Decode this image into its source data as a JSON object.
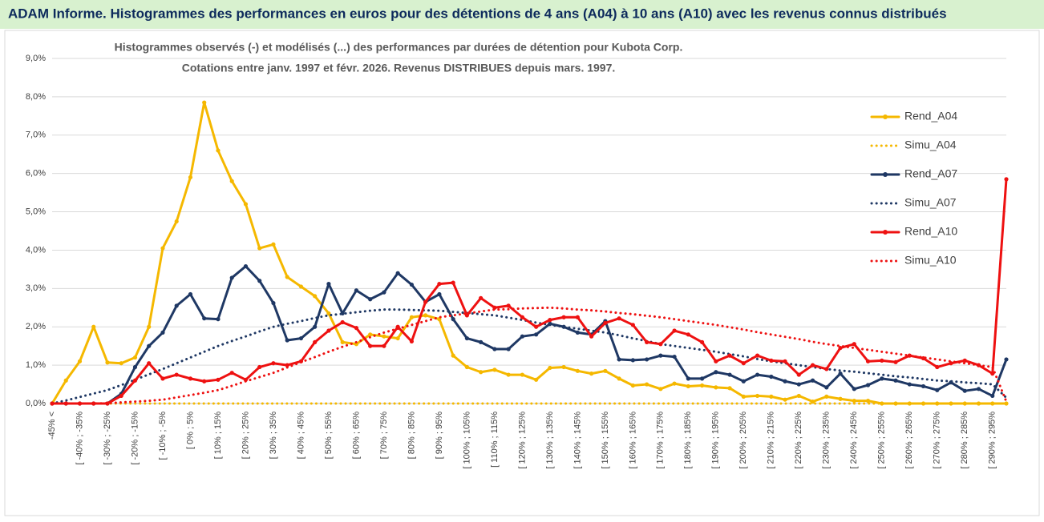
{
  "header": {
    "title": "ADAM Informe. Histogrammes des performances en euros pour des détentions de 4 ans (A04) à 10 ans (A10) avec les revenus connus distribués"
  },
  "chart_data": {
    "type": "line",
    "title": "Histogrammes observés (-) et modélisés (...) des performances par durées de détention pour Kubota Corp.",
    "subtitle": "Cotations entre janv. 1997 et févr.  2026. Revenus DISTRIBUES depuis mars. 1997.",
    "categories": [
      "-45% <",
      null,
      "[ -40% ; -35%",
      null,
      "[ -30% ; -25%",
      null,
      "[ -20% ; -15%",
      null,
      "[ -10% ; -5%",
      null,
      "[ 0% ; 5%",
      null,
      "[ 10% ; 15%",
      null,
      "[ 20% ; 25%",
      null,
      "[ 30% ; 35%",
      null,
      "[ 40% ; 45%",
      null,
      "[ 50% ; 55%",
      null,
      "[ 60% ; 65%",
      null,
      "[ 70% ; 75%",
      null,
      "[ 80% ; 85%",
      null,
      "[ 90% ; 95%",
      null,
      "[ 100% ; 105%",
      null,
      "[ 110% ; 115%",
      null,
      "[ 120% ; 125%",
      null,
      "[ 130% ; 135%",
      null,
      "[ 140% ; 145%",
      null,
      "[ 150% ; 155%",
      null,
      "[ 160% ; 165%",
      null,
      "[ 170% ; 175%",
      null,
      "[ 180% ; 185%",
      null,
      "[ 190% ; 195%",
      null,
      "[ 200% ; 205%",
      null,
      "[ 210% ; 215%",
      null,
      "[ 220% ; 225%",
      null,
      "[ 230% ; 235%",
      null,
      "[ 240% ; 245%",
      null,
      "[ 250% ; 255%",
      null,
      "[ 260% ; 265%",
      null,
      "[ 270% ; 275%",
      null,
      "[ 280% ; 285%",
      null,
      "[ 290% ; 295%",
      null
    ],
    "ylim": [
      0,
      9
    ],
    "yticks": [
      {
        "value": 0,
        "label": "0,0%"
      },
      {
        "value": 1,
        "label": "1,0%"
      },
      {
        "value": 2,
        "label": "2,0%"
      },
      {
        "value": 3,
        "label": "3,0%"
      },
      {
        "value": 4,
        "label": "4,0%"
      },
      {
        "value": 5,
        "label": "5,0%"
      },
      {
        "value": 6,
        "label": "6,0%"
      },
      {
        "value": 7,
        "label": "7,0%"
      },
      {
        "value": 8,
        "label": "8,0%"
      },
      {
        "value": 9,
        "label": "9,0%"
      }
    ],
    "grid": true,
    "legend": "right",
    "series": [
      {
        "name": "Rend_A04",
        "color": "#f5b800",
        "line_style": "solid",
        "markers": true,
        "values": [
          0,
          0.6,
          1.1,
          2.0,
          1.07,
          1.05,
          1.2,
          2.0,
          4.05,
          4.75,
          5.9,
          7.85,
          6.6,
          5.8,
          5.2,
          4.05,
          4.15,
          3.3,
          3.05,
          2.8,
          2.35,
          1.6,
          1.55,
          1.8,
          1.75,
          1.7,
          2.25,
          2.3,
          2.2,
          1.25,
          0.95,
          0.82,
          0.88,
          0.75,
          0.75,
          0.62,
          0.93,
          0.95,
          0.85,
          0.78,
          0.85,
          0.65,
          0.47,
          0.5,
          0.38,
          0.52,
          0.45,
          0.47,
          0.42,
          0.4,
          0.18,
          0.2,
          0.18,
          0.1,
          0.2,
          0.05,
          0.18,
          0.12,
          0.07,
          0.07,
          0,
          0,
          0,
          0,
          0,
          0,
          0,
          0,
          0,
          0
        ]
      },
      {
        "name": "Simu_A04",
        "color": "#f5b800",
        "line_style": "dotted",
        "markers": false,
        "values": [
          0,
          0,
          0,
          0,
          0,
          0,
          0,
          0,
          0,
          0,
          0,
          0,
          0,
          0,
          0,
          0,
          0,
          0,
          0,
          0,
          0,
          0,
          0,
          0,
          0,
          0,
          0,
          0,
          0,
          0,
          0,
          0,
          0,
          0,
          0,
          0,
          0,
          0,
          0,
          0,
          0,
          0,
          0,
          0,
          0,
          0,
          0,
          0,
          0,
          0,
          0,
          0,
          0,
          0,
          0,
          0,
          0,
          0,
          0,
          0,
          0,
          0,
          0,
          0,
          0,
          0,
          0,
          0,
          0,
          0
        ]
      },
      {
        "name": "Rend_A07",
        "color": "#1f3864",
        "line_style": "solid",
        "markers": true,
        "values": [
          0,
          0,
          0,
          0,
          0,
          0.25,
          0.95,
          1.5,
          1.85,
          2.55,
          2.85,
          2.22,
          2.2,
          3.28,
          3.58,
          3.2,
          2.62,
          1.65,
          1.7,
          2.0,
          3.12,
          2.35,
          2.95,
          2.72,
          2.9,
          3.4,
          3.1,
          2.65,
          2.85,
          2.2,
          1.7,
          1.6,
          1.42,
          1.42,
          1.75,
          1.8,
          2.08,
          2.0,
          1.85,
          1.8,
          2.15,
          1.15,
          1.13,
          1.15,
          1.25,
          1.22,
          0.65,
          0.65,
          0.82,
          0.75,
          0.58,
          0.75,
          0.7,
          0.58,
          0.5,
          0.6,
          0.42,
          0.78,
          0.38,
          0.48,
          0.65,
          0.6,
          0.5,
          0.45,
          0.35,
          0.55,
          0.33,
          0.38,
          0.2,
          1.15
        ]
      },
      {
        "name": "Simu_A07",
        "color": "#1f3864",
        "line_style": "dotted",
        "markers": false,
        "values": [
          0,
          0.08,
          0.17,
          0.26,
          0.35,
          0.48,
          0.62,
          0.76,
          0.9,
          1.05,
          1.2,
          1.35,
          1.5,
          1.63,
          1.75,
          1.88,
          2.0,
          2.08,
          2.15,
          2.23,
          2.3,
          2.34,
          2.38,
          2.42,
          2.45,
          2.45,
          2.44,
          2.43,
          2.42,
          2.39,
          2.36,
          2.33,
          2.3,
          2.24,
          2.18,
          2.11,
          2.05,
          2.0,
          1.95,
          1.9,
          1.85,
          1.78,
          1.7,
          1.63,
          1.55,
          1.5,
          1.45,
          1.4,
          1.35,
          1.29,
          1.23,
          1.16,
          1.1,
          1.05,
          1.0,
          0.95,
          0.9,
          0.86,
          0.83,
          0.79,
          0.75,
          0.71,
          0.68,
          0.64,
          0.6,
          0.58,
          0.55,
          0.53,
          0.5,
          0.15
        ]
      },
      {
        "name": "Rend_A10",
        "color": "#ee1111",
        "line_style": "solid",
        "markers": true,
        "values": [
          0,
          0,
          0,
          0,
          0,
          0.2,
          0.6,
          1.05,
          0.65,
          0.75,
          0.65,
          0.58,
          0.62,
          0.8,
          0.62,
          0.95,
          1.05,
          1.0,
          1.1,
          1.6,
          1.9,
          2.12,
          1.97,
          1.5,
          1.5,
          2.0,
          1.62,
          2.65,
          3.12,
          3.15,
          2.3,
          2.75,
          2.5,
          2.55,
          2.25,
          2.0,
          2.18,
          2.25,
          2.25,
          1.75,
          2.1,
          2.22,
          2.05,
          1.6,
          1.55,
          1.9,
          1.8,
          1.6,
          1.1,
          1.25,
          1.05,
          1.25,
          1.12,
          1.1,
          0.75,
          1.0,
          0.9,
          1.45,
          1.55,
          1.1,
          1.12,
          1.08,
          1.25,
          1.18,
          0.95,
          1.05,
          1.12,
          1.0,
          0.78,
          5.85
        ]
      },
      {
        "name": "Simu_A10",
        "color": "#ee1111",
        "line_style": "dotted",
        "markers": false,
        "values": [
          0,
          0,
          0,
          0,
          0.01,
          0.03,
          0.05,
          0.07,
          0.1,
          0.16,
          0.22,
          0.28,
          0.35,
          0.46,
          0.58,
          0.69,
          0.8,
          0.94,
          1.08,
          1.21,
          1.35,
          1.48,
          1.6,
          1.73,
          1.85,
          1.95,
          2.05,
          2.15,
          2.25,
          2.3,
          2.35,
          2.4,
          2.45,
          2.46,
          2.48,
          2.49,
          2.5,
          2.48,
          2.45,
          2.43,
          2.4,
          2.36,
          2.33,
          2.29,
          2.25,
          2.2,
          2.15,
          2.1,
          2.05,
          1.99,
          1.93,
          1.86,
          1.8,
          1.74,
          1.68,
          1.61,
          1.55,
          1.5,
          1.45,
          1.4,
          1.35,
          1.3,
          1.25,
          1.2,
          1.15,
          1.1,
          1.05,
          1.0,
          0.95,
          0.05
        ]
      }
    ]
  }
}
